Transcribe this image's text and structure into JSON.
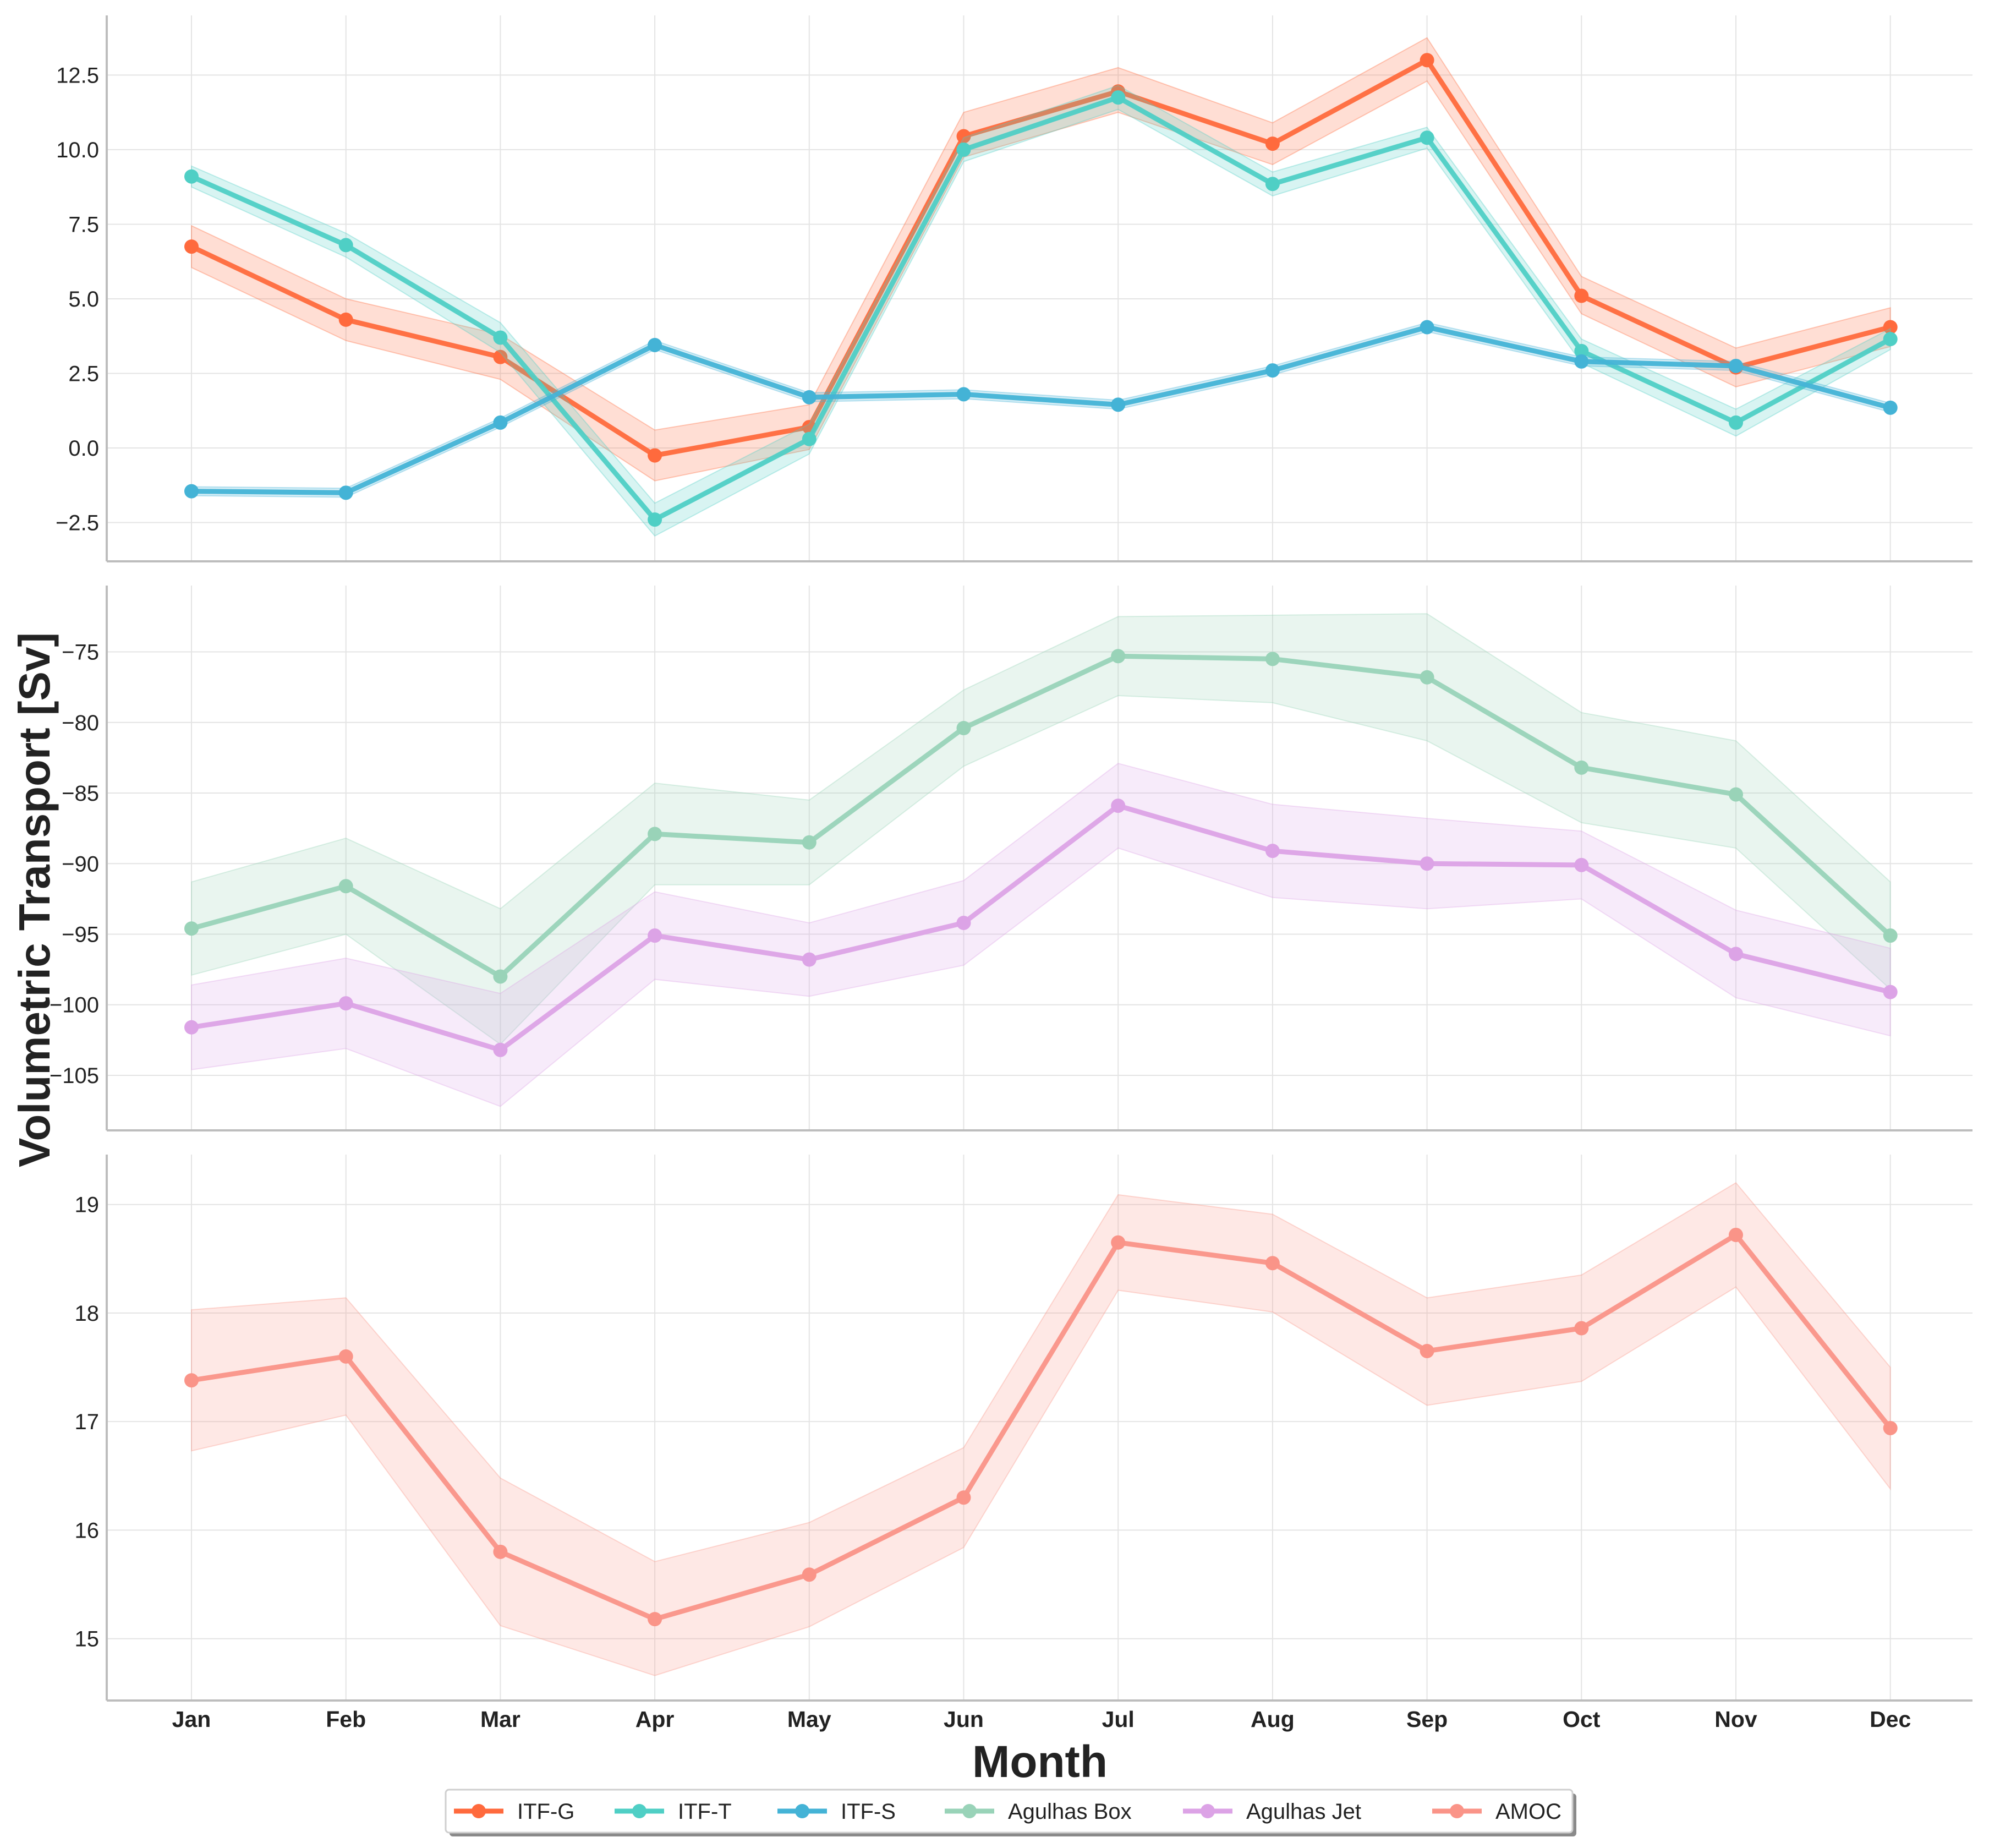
{
  "chart_data": {
    "type": "line",
    "xlabel": "Month",
    "ylabel": "Volumetric Transport [Sv]",
    "categories": [
      "Jan",
      "Feb",
      "Mar",
      "Apr",
      "May",
      "Jun",
      "Jul",
      "Aug",
      "Sep",
      "Oct",
      "Nov",
      "Dec"
    ],
    "grid": true,
    "legend_placement": "bottom-center",
    "panels": [
      {
        "ylim": [
          -3.8,
          14.5
        ],
        "yticks": [
          -2.5,
          0,
          2.5,
          5,
          7.5,
          10,
          12.5
        ],
        "ytick_labels": [
          "−2.5",
          "0.0",
          "2.5",
          "5.0",
          "7.5",
          "10.0",
          "12.5"
        ],
        "series": [
          {
            "name": "ITF-G",
            "color": "#ff6a3d",
            "values": [
              6.75,
              4.3,
              3.05,
              -0.25,
              0.7,
              10.45,
              11.95,
              10.2,
              13.0,
              5.1,
              2.7,
              4.05
            ],
            "lower": [
              6.05,
              3.6,
              2.3,
              -1.1,
              -0.05,
              9.75,
              11.25,
              9.5,
              12.3,
              4.5,
              2.05,
              3.4
            ],
            "upper": [
              7.45,
              5.0,
              3.8,
              0.6,
              1.45,
              11.25,
              12.75,
              10.9,
              13.75,
              5.75,
              3.35,
              4.7
            ]
          },
          {
            "name": "ITF-T",
            "color": "#4fcfc5",
            "values": [
              9.1,
              6.8,
              3.7,
              -2.4,
              0.3,
              10.0,
              11.75,
              8.85,
              10.4,
              3.25,
              0.85,
              3.65
            ],
            "lower": [
              8.75,
              6.4,
              3.2,
              -2.95,
              -0.2,
              9.6,
              11.35,
              8.45,
              10.05,
              2.85,
              0.4,
              3.3
            ],
            "upper": [
              9.45,
              7.2,
              4.2,
              -1.85,
              0.8,
              10.4,
              12.15,
              9.25,
              10.75,
              3.65,
              1.3,
              4.0
            ]
          },
          {
            "name": "ITF-S",
            "color": "#44b3d6",
            "values": [
              -1.45,
              -1.5,
              0.85,
              3.45,
              1.7,
              1.8,
              1.45,
              2.6,
              4.05,
              2.9,
              2.75,
              1.35
            ],
            "lower": [
              -1.6,
              -1.65,
              0.7,
              3.3,
              1.55,
              1.65,
              1.3,
              2.45,
              3.9,
              2.75,
              2.6,
              1.2
            ],
            "upper": [
              -1.3,
              -1.35,
              1.0,
              3.6,
              1.85,
              1.95,
              1.6,
              2.75,
              4.2,
              3.05,
              2.9,
              1.5
            ]
          }
        ]
      },
      {
        "ylim": [
          -108.9,
          -70.3
        ],
        "yticks": [
          -105,
          -100,
          -95,
          -90,
          -85,
          -80,
          -75
        ],
        "ytick_labels": [
          "−105",
          "−100",
          "−95",
          "−90",
          "−85",
          "−80",
          "−75"
        ],
        "series": [
          {
            "name": "Agulhas Box",
            "color": "#99d3b8",
            "values": [
              -94.6,
              -91.6,
              -98.0,
              -87.9,
              -88.5,
              -80.4,
              -75.3,
              -75.5,
              -76.8,
              -83.2,
              -85.1,
              -95.1
            ],
            "lower": [
              -97.9,
              -95.0,
              -102.8,
              -91.5,
              -91.5,
              -83.1,
              -78.1,
              -78.6,
              -81.3,
              -87.1,
              -88.9,
              -98.9
            ],
            "upper": [
              -91.3,
              -88.2,
              -93.2,
              -84.3,
              -85.5,
              -77.7,
              -72.5,
              -72.4,
              -72.3,
              -79.3,
              -81.3,
              -91.3
            ]
          },
          {
            "name": "Agulhas Jet",
            "color": "#dca3e6",
            "values": [
              -101.6,
              -99.9,
              -103.2,
              -95.1,
              -96.8,
              -94.2,
              -85.9,
              -89.1,
              -90.0,
              -90.1,
              -96.4,
              -99.1
            ],
            "lower": [
              -104.6,
              -103.1,
              -107.2,
              -98.2,
              -99.4,
              -97.2,
              -88.9,
              -92.4,
              -93.2,
              -92.5,
              -99.5,
              -102.2
            ],
            "upper": [
              -98.6,
              -96.7,
              -99.2,
              -92.0,
              -94.2,
              -91.2,
              -82.9,
              -85.8,
              -86.8,
              -87.7,
              -93.3,
              -96.0
            ]
          }
        ]
      },
      {
        "ylim": [
          14.43,
          19.46
        ],
        "yticks": [
          15,
          16,
          17,
          18,
          19
        ],
        "ytick_labels": [
          "15",
          "16",
          "17",
          "18",
          "19"
        ],
        "series": [
          {
            "name": "AMOC",
            "color": "#fa9488",
            "values": [
              17.38,
              17.6,
              15.8,
              15.18,
              15.59,
              16.3,
              18.65,
              18.46,
              17.65,
              17.86,
              18.72,
              16.94
            ],
            "lower": [
              16.73,
              17.06,
              15.12,
              14.66,
              15.11,
              15.84,
              18.21,
              18.01,
              17.15,
              17.37,
              18.24,
              16.38
            ],
            "upper": [
              18.03,
              18.14,
              16.48,
              15.71,
              16.07,
              16.76,
              19.09,
              18.91,
              18.14,
              18.35,
              19.2,
              17.5
            ]
          }
        ]
      }
    ]
  }
}
